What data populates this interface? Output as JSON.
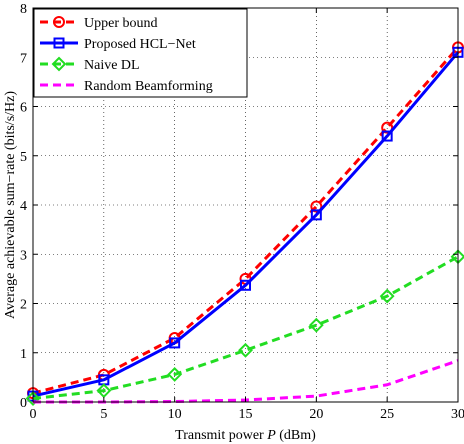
{
  "chart_data": {
    "type": "line",
    "title": "",
    "xlabel": "Transmit power P (dBm)",
    "xlabel_prefix": "Transmit power ",
    "xlabel_var": "P",
    "xlabel_suffix": " (dBm)",
    "ylabel": "Average achievable sum−rate (bits/s/Hz)",
    "xlim": [
      0,
      30
    ],
    "ylim": [
      0,
      8
    ],
    "xticks": [
      0,
      5,
      10,
      15,
      20,
      25,
      30
    ],
    "yticks": [
      0,
      1,
      2,
      3,
      4,
      5,
      6,
      7,
      8
    ],
    "grid": true,
    "legend_position": "top-left",
    "series": [
      {
        "name": "Upper bound",
        "color": "#ff0000",
        "dash": "dashed",
        "marker": "circle",
        "x": [
          0,
          5,
          10,
          15,
          20,
          25,
          30
        ],
        "values": [
          0.18,
          0.55,
          1.3,
          2.5,
          3.97,
          5.57,
          7.2
        ]
      },
      {
        "name": "Proposed HCL−Net",
        "color": "#0000ff",
        "dash": "solid",
        "marker": "square",
        "x": [
          0,
          5,
          10,
          15,
          20,
          25,
          30
        ],
        "values": [
          0.12,
          0.45,
          1.2,
          2.37,
          3.8,
          5.4,
          7.1
        ]
      },
      {
        "name": "Naive DL",
        "color": "#22dd22",
        "dash": "dashed",
        "marker": "diamond",
        "x": [
          0,
          5,
          10,
          15,
          20,
          25,
          30
        ],
        "values": [
          0.07,
          0.23,
          0.56,
          1.05,
          1.56,
          2.15,
          2.95
        ]
      },
      {
        "name": "Random Beamforming",
        "color": "#ff00ff",
        "dash": "dashed",
        "marker": "none",
        "x": [
          0,
          5,
          10,
          15,
          20,
          25,
          30
        ],
        "values": [
          0.0,
          0.0,
          0.01,
          0.04,
          0.12,
          0.35,
          0.84
        ]
      }
    ]
  }
}
